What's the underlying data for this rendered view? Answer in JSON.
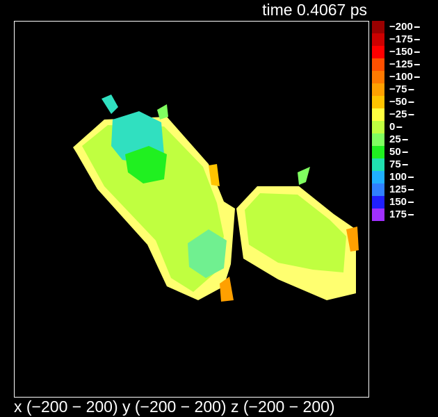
{
  "header": {
    "title": "time 0.4067 ps"
  },
  "footer": {
    "text": "x (−200 − 200) y (−200 − 200) z (−200 − 200)"
  },
  "colorbar": [
    {
      "label": "−200",
      "color": "#9a0000"
    },
    {
      "label": "−175",
      "color": "#cc0000"
    },
    {
      "label": "−150",
      "color": "#ff0000"
    },
    {
      "label": "−125",
      "color": "#ff5000"
    },
    {
      "label": "−100",
      "color": "#ff7a00"
    },
    {
      "label": "−75",
      "color": "#ffa000"
    },
    {
      "label": "−50",
      "color": "#ffc400"
    },
    {
      "label": "−25",
      "color": "#ffff40"
    },
    {
      "label": "0",
      "color": "#c0ff40"
    },
    {
      "label": "25",
      "color": "#80ff60"
    },
    {
      "label": "50",
      "color": "#20f020"
    },
    {
      "label": "75",
      "color": "#20e0b0"
    },
    {
      "label": "100",
      "color": "#20b0ff"
    },
    {
      "label": "125",
      "color": "#3080ff"
    },
    {
      "label": "150",
      "color": "#2020ff"
    },
    {
      "label": "175",
      "color": "#a030ff"
    }
  ]
}
